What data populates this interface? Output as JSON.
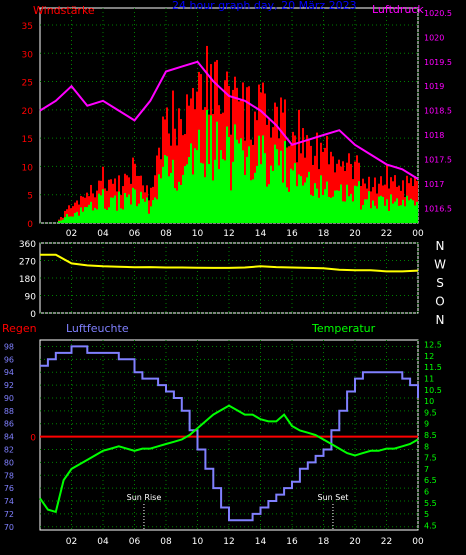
{
  "colors": {
    "background": "#000000",
    "frame": "#ffffff",
    "wind": "#ff0000",
    "gust": "#ff0000",
    "wind_avg": "#00ff00",
    "pressure": "#ff00ff",
    "direction": "#ffff00",
    "humidity": "#8080ff",
    "temperature": "#00ff00",
    "rain": "#ff0000",
    "title": "#0000ff",
    "grid": "#008000"
  },
  "chart_data": [
    {
      "type": "bar",
      "title": "24 hour graph day, 20 März 2023",
      "left_axis_label": "Windstärke",
      "right_axis_label": "Luftdruck",
      "x_ticks": [
        "02",
        "04",
        "06",
        "08",
        "10",
        "12",
        "14",
        "16",
        "18",
        "20",
        "22",
        "00"
      ],
      "y_left_ticks": [
        0,
        5,
        10,
        15,
        20,
        25,
        30,
        35
      ],
      "y_right_ticks": [
        "1016.5",
        "1017",
        "1017.5",
        "1018",
        "1018.5",
        "1019",
        "1019.5",
        "1020",
        "1020.5"
      ],
      "ylim_left": [
        0,
        38
      ],
      "ylim_right": [
        1016.2,
        1020.6
      ],
      "grid": true,
      "x_hours": [
        0,
        1,
        2,
        3,
        4,
        5,
        6,
        7,
        8,
        9,
        10,
        11,
        12,
        13,
        14,
        15,
        16,
        17,
        18,
        19,
        20,
        21,
        22,
        23,
        24
      ],
      "series": [
        {
          "name": "Windstärke",
          "values": [
            0,
            0,
            4,
            6,
            10,
            8,
            12,
            6,
            22,
            26,
            33,
            30,
            28,
            24,
            24,
            22,
            20,
            18,
            16,
            12,
            12,
            8,
            10,
            8,
            8
          ]
        },
        {
          "name": "Luftdruck",
          "values": [
            1018.5,
            1018.7,
            1019.0,
            1018.6,
            1018.7,
            1018.5,
            1018.3,
            1018.7,
            1019.3,
            1019.4,
            1019.5,
            1019.1,
            1018.8,
            1018.7,
            1018.5,
            1018.2,
            1017.8,
            1017.9,
            1018.0,
            1018.1,
            1017.8,
            1017.6,
            1017.4,
            1017.3,
            1017.1
          ]
        }
      ]
    },
    {
      "type": "line",
      "y_ticks": [
        0,
        90,
        180,
        270,
        360
      ],
      "ylim": [
        0,
        360
      ],
      "direction_labels": [
        "N",
        "W",
        "S",
        "O",
        "N"
      ],
      "grid": true,
      "x_hours": [
        0,
        1,
        2,
        3,
        4,
        5,
        6,
        7,
        8,
        9,
        10,
        11,
        12,
        13,
        14,
        15,
        16,
        17,
        18,
        19,
        20,
        21,
        22,
        23,
        24
      ],
      "series": [
        {
          "name": "Windrichtung",
          "values": [
            300,
            300,
            255,
            245,
            240,
            238,
            235,
            236,
            234,
            234,
            233,
            232,
            232,
            234,
            240,
            236,
            234,
            232,
            230,
            222,
            220,
            220,
            214,
            214,
            218
          ]
        }
      ]
    },
    {
      "type": "line",
      "left_axis_label": "Regen",
      "humidity_label": "Luftfeuchte",
      "temperature_label": "Temperatur",
      "x_ticks": [
        "02",
        "04",
        "06",
        "08",
        "10",
        "12",
        "14",
        "16",
        "18",
        "20",
        "22",
        "00"
      ],
      "y_humidity_ticks": [
        70,
        72,
        74,
        76,
        78,
        80,
        82,
        84,
        86,
        88,
        90,
        92,
        94,
        96,
        98
      ],
      "y_temperature_ticks": [
        "4.5",
        "5",
        "5.5",
        "6",
        "6.5",
        "7",
        "7.5",
        "8",
        "8.5",
        "9",
        "9.5",
        "10",
        "10.5",
        "11",
        "11.5",
        "12",
        "12.5"
      ],
      "rain_tick": "0",
      "ylim_humidity": [
        69.5,
        99
      ],
      "ylim_temperature": [
        4.3,
        12.7
      ],
      "annotations": [
        {
          "text": "Sun Rise",
          "x_hour": 6.6
        },
        {
          "text": "Sun Set",
          "x_hour": 18.6
        }
      ],
      "grid": true,
      "x_hours": [
        0,
        0.5,
        1,
        1.5,
        2,
        2.5,
        3,
        3.5,
        4,
        4.5,
        5,
        5.5,
        6,
        6.5,
        7,
        7.5,
        8,
        8.5,
        9,
        9.5,
        10,
        10.5,
        11,
        11.5,
        12,
        12.5,
        13,
        13.5,
        14,
        14.5,
        15,
        15.5,
        16,
        16.5,
        17,
        17.5,
        18,
        18.5,
        19,
        19.5,
        20,
        20.5,
        21,
        21.5,
        22,
        22.5,
        23,
        23.5,
        24
      ],
      "series": [
        {
          "name": "Luftfeuchte",
          "values": [
            95,
            96,
            97,
            97,
            98,
            98,
            97,
            97,
            97,
            97,
            96,
            96,
            94,
            93,
            93,
            92,
            91,
            90,
            88,
            85,
            82,
            79,
            76,
            73,
            71,
            71,
            71,
            72,
            73,
            74,
            75,
            76,
            77,
            79,
            80,
            81,
            82,
            85,
            88,
            91,
            93,
            94,
            94,
            94,
            94,
            94,
            93,
            92,
            90
          ]
        },
        {
          "name": "Temperatur",
          "values": [
            5.7,
            5.2,
            5.1,
            6.5,
            7.0,
            7.2,
            7.4,
            7.6,
            7.8,
            7.9,
            8.0,
            7.9,
            7.8,
            7.9,
            7.9,
            8.0,
            8.1,
            8.2,
            8.3,
            8.5,
            8.8,
            9.1,
            9.4,
            9.6,
            9.8,
            9.6,
            9.4,
            9.4,
            9.2,
            9.1,
            9.1,
            9.4,
            8.9,
            8.7,
            8.6,
            8.5,
            8.3,
            8.1,
            7.9,
            7.7,
            7.6,
            7.7,
            7.8,
            7.8,
            7.9,
            7.9,
            8.0,
            8.1,
            8.3
          ]
        },
        {
          "name": "Regen",
          "values": [
            0,
            0,
            0,
            0,
            0,
            0,
            0,
            0,
            0,
            0,
            0,
            0,
            0,
            0,
            0,
            0,
            0,
            0,
            0,
            0,
            0,
            0,
            0,
            0,
            0,
            0,
            0,
            0,
            0,
            0,
            0,
            0,
            0,
            0,
            0,
            0,
            0,
            0,
            0,
            0,
            0,
            0,
            0,
            0,
            0,
            0,
            0,
            0,
            0
          ]
        }
      ]
    }
  ]
}
